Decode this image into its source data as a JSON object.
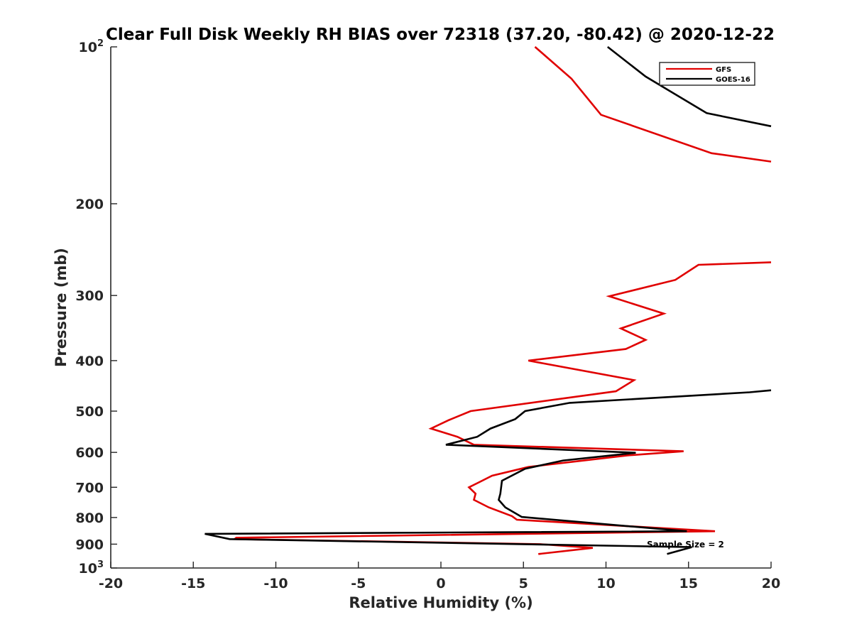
{
  "chart_data": {
    "type": "line",
    "title": "Clear Full Disk Weekly RH BIAS over 72318 (37.20, -80.42) @ 2020-12-22",
    "xlabel": "Relative Humidity (%)",
    "ylabel": "Pressure (mb)",
    "xlim": [
      -20,
      20
    ],
    "ylim": [
      100,
      1000
    ],
    "y_scale": "log",
    "y_reversed": true,
    "x_ticks": [
      "-20",
      "-15",
      "-10",
      "-5",
      "0",
      "5",
      "10",
      "15",
      "20"
    ],
    "y_ticks": [
      {
        "value": 100,
        "base": "10",
        "exp": "2"
      },
      {
        "value": 200,
        "label": "200"
      },
      {
        "value": 300,
        "label": "300"
      },
      {
        "value": 400,
        "label": "400"
      },
      {
        "value": 500,
        "label": "500"
      },
      {
        "value": 600,
        "label": "600"
      },
      {
        "value": 700,
        "label": "700"
      },
      {
        "value": 800,
        "label": "800"
      },
      {
        "value": 900,
        "label": "900"
      },
      {
        "value": 1000,
        "base": "10",
        "exp": "3"
      }
    ],
    "grid": false,
    "legend_position": "top-right",
    "annotation": "Sample Size = 2",
    "series": [
      {
        "name": "GFS",
        "color": "#e00000",
        "points": [
          [
            5.7,
            100
          ],
          [
            7.9,
            115
          ],
          [
            9.7,
            135
          ],
          [
            16.4,
            160
          ],
          [
            20,
            166
          ],
          null,
          [
            20,
            259
          ],
          [
            15.6,
            262
          ],
          [
            14.2,
            280
          ],
          [
            10.2,
            301
          ],
          [
            13.5,
            325
          ],
          [
            10.9,
            347
          ],
          [
            12.4,
            365
          ],
          [
            11.2,
            380
          ],
          [
            5.3,
            400
          ],
          [
            11.7,
            436
          ],
          [
            10.6,
            458
          ],
          [
            1.8,
            500
          ],
          [
            0.5,
            520
          ],
          [
            -0.6,
            540
          ],
          [
            1,
            560
          ],
          [
            2,
            580
          ],
          [
            14.7,
            597
          ],
          [
            11.3,
            608
          ],
          [
            5.3,
            640
          ],
          [
            3.1,
            665
          ],
          [
            2.3,
            685
          ],
          [
            1.7,
            700
          ],
          [
            2.1,
            720
          ],
          [
            2,
            740
          ],
          [
            2.9,
            765
          ],
          [
            4.3,
            795
          ],
          [
            4.6,
            808
          ],
          [
            16.6,
            850
          ],
          [
            -12.4,
            875
          ],
          [
            -12.5,
            880
          ],
          [
            6,
            900
          ],
          [
            9.2,
            915
          ],
          [
            5.9,
            940
          ]
        ]
      },
      {
        "name": "GOES-16",
        "color": "#000000",
        "points": [
          [
            10.1,
            100
          ],
          [
            12.4,
            114
          ],
          [
            16.1,
            134
          ],
          [
            20,
            142
          ],
          null,
          [
            20,
            456
          ],
          [
            18.7,
            460
          ],
          [
            7.8,
            482
          ],
          [
            5.1,
            500
          ],
          [
            4.5,
            518
          ],
          [
            3,
            540
          ],
          [
            2.2,
            560
          ],
          [
            0.3,
            580
          ],
          [
            11.8,
            601
          ],
          [
            7.4,
            622
          ],
          [
            5.1,
            645
          ],
          [
            3.7,
            680
          ],
          [
            3.6,
            720
          ],
          [
            3.5,
            740
          ],
          [
            3.9,
            765
          ],
          [
            4.9,
            798
          ],
          [
            14.9,
            850
          ],
          [
            -14.3,
            860
          ],
          [
            -12.8,
            880
          ],
          [
            15.2,
            912
          ],
          [
            13.7,
            940
          ]
        ]
      }
    ]
  }
}
